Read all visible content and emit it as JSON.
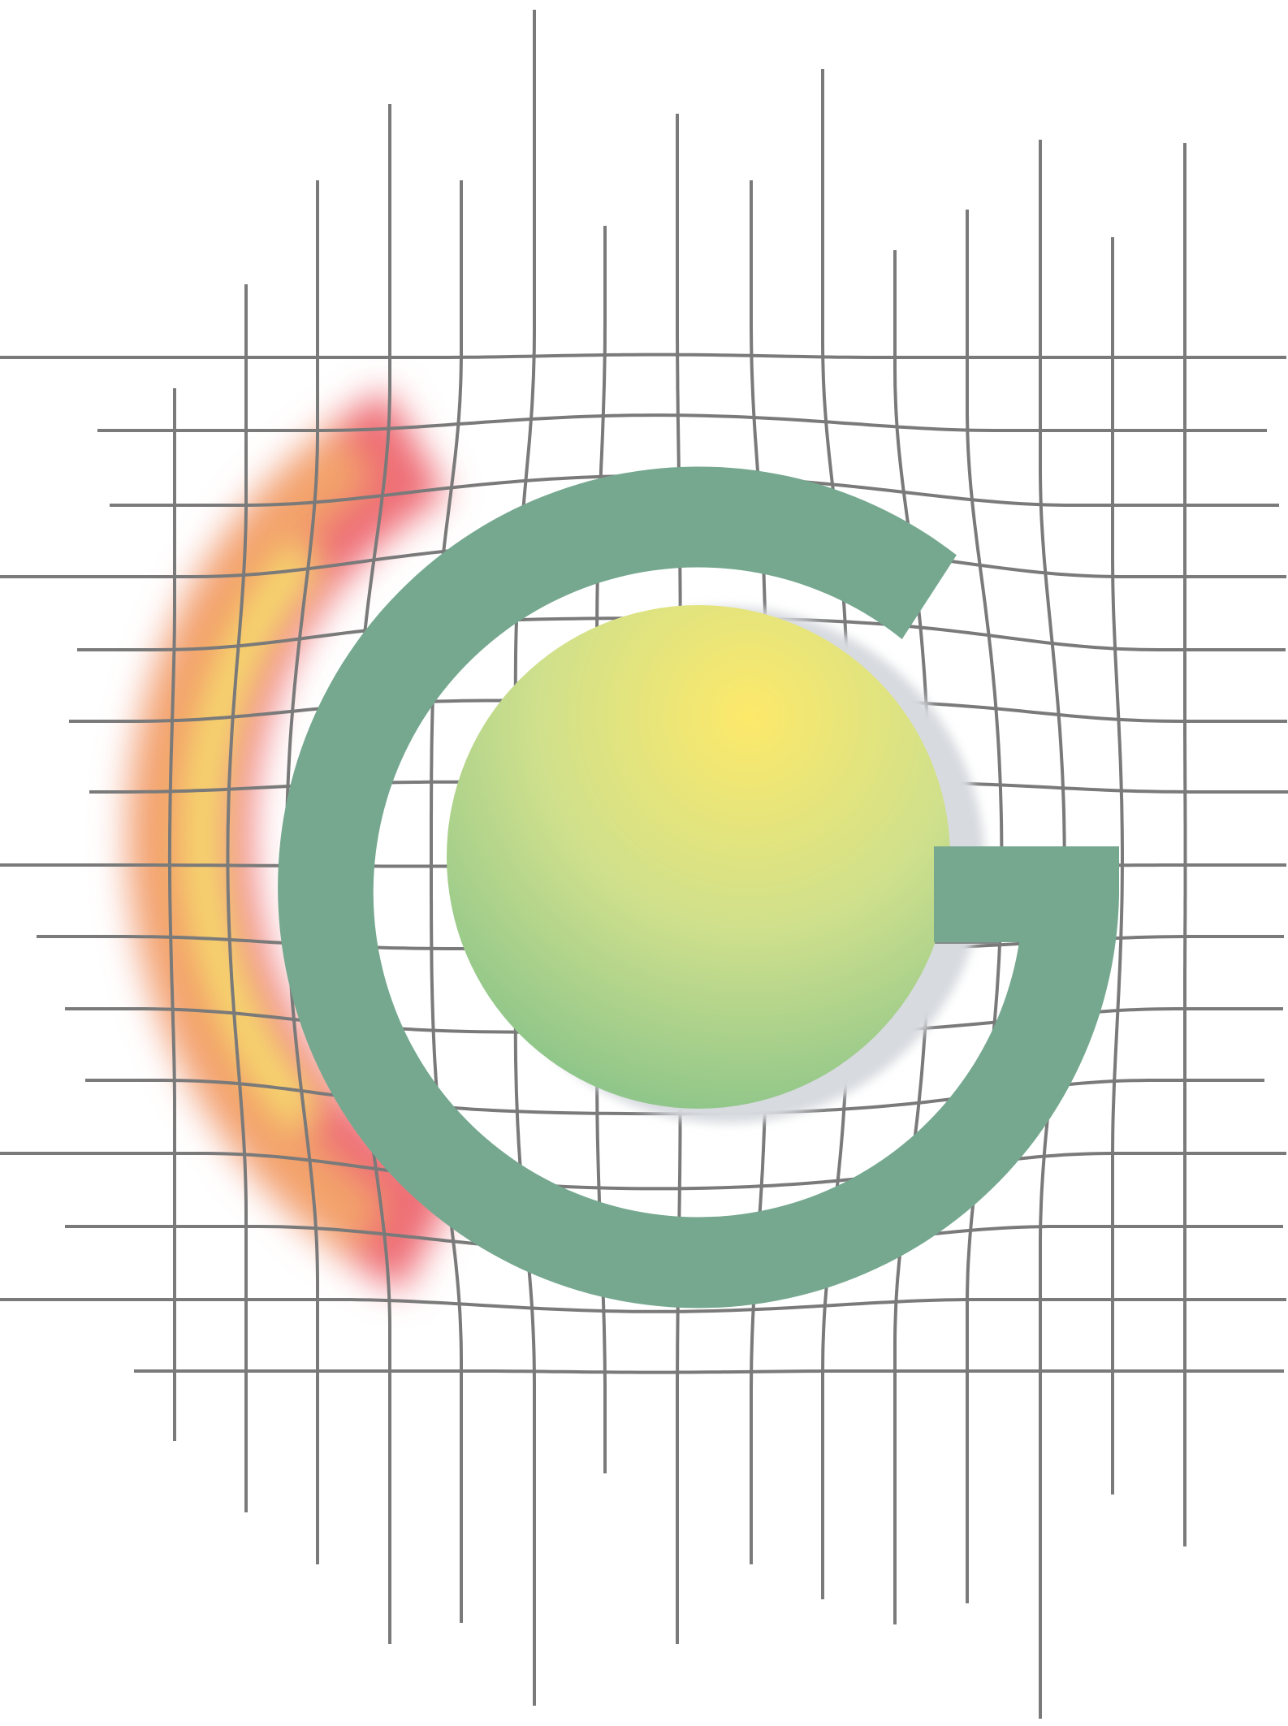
{
  "artwork": {
    "subject": "letter-g-logo-over-warped-grid",
    "colors": {
      "background": "#ffffff",
      "grid_line": "#7a7a7a",
      "letter_g": "#76a890",
      "letter_g_inner_shadow": "#848a8a",
      "sphere_highlight": "#fde96a",
      "sphere_mid": "#cfe08c",
      "sphere_edge": "#86c28a",
      "sphere_shadow": "#d7dadf",
      "glow_red": "#ee6c74",
      "glow_orange": "#f3a36a",
      "glow_yellow": "#f7e66e"
    }
  }
}
